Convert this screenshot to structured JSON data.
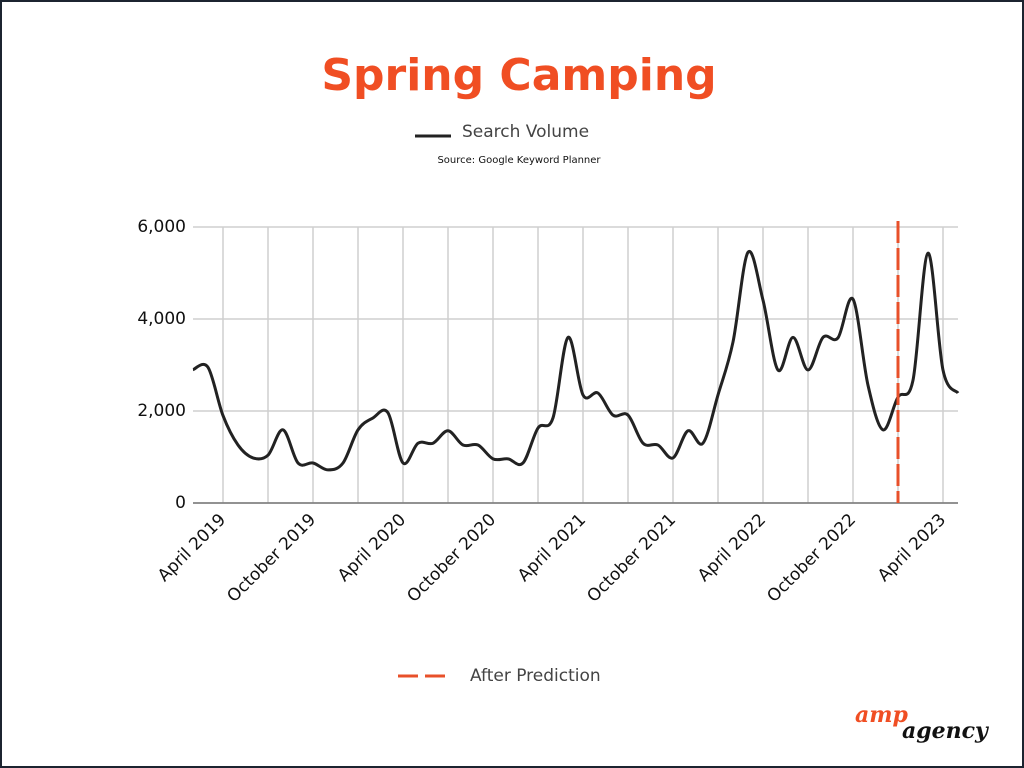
{
  "chart_data": {
    "type": "line",
    "title": "Spring Camping",
    "subtitle": "Source: Google Keyword Planner",
    "categories": [
      null,
      null,
      "April 2019",
      null,
      null,
      null,
      null,
      null,
      "October 2019",
      null,
      null,
      null,
      null,
      null,
      "April 2020",
      null,
      null,
      null,
      null,
      null,
      "October 2020",
      null,
      null,
      null,
      null,
      null,
      "April 2021",
      null,
      null,
      null,
      null,
      null,
      "October 2021",
      null,
      null,
      null,
      null,
      null,
      "April 2022",
      null,
      null,
      null,
      null,
      null,
      "October 2022",
      null,
      null,
      null,
      null,
      null,
      "April 2023",
      null
    ],
    "series": [
      {
        "name": "Search Volume",
        "color": "#222222",
        "values": [
          2900,
          2950,
          1900,
          1260,
          980,
          1040,
          1590,
          870,
          870,
          720,
          870,
          1590,
          1850,
          1960,
          870,
          1300,
          1300,
          1570,
          1260,
          1260,
          960,
          960,
          870,
          1630,
          1850,
          3600,
          2350,
          2390,
          1910,
          1910,
          1300,
          1260,
          980,
          1570,
          1300,
          2350,
          3500,
          5450,
          4410,
          2890,
          3600,
          2890,
          3600,
          3590,
          4430,
          2560,
          1590,
          2300,
          2670,
          5430,
          2890,
          2390
        ]
      }
    ],
    "ylim": [
      0,
      6000
    ],
    "yticks": [
      0,
      {
        "value": 2000,
        "label": "2,000"
      },
      {
        "value": 4000,
        "label": "4,000"
      },
      {
        "value": 6000,
        "label": "6,000"
      }
    ],
    "grid": true,
    "annotations": [
      {
        "label": "After Prediction",
        "color": "#e8502a",
        "at_index": 47
      }
    ]
  },
  "logo": {
    "top": "amp",
    "bottom": "agency"
  }
}
